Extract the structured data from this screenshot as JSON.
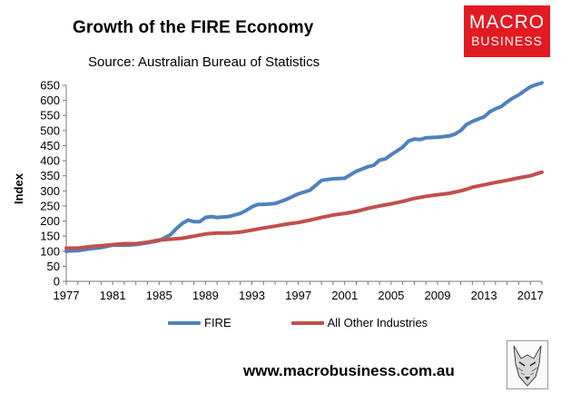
{
  "header": {
    "title": "Growth of the FIRE Economy",
    "subtitle": "Source: Australian Bureau of Statistics"
  },
  "logo": {
    "line1": "MACRO",
    "line2": "BUSINESS",
    "color": "#e21a22"
  },
  "footer": {
    "url": "www.macrobusiness.com.au"
  },
  "chart_data": {
    "type": "line",
    "title": "Growth of the FIRE Economy",
    "subtitle": "Source: Australian Bureau of Statistics",
    "xlabel": "",
    "ylabel": "Index",
    "xlim": [
      1977,
      2018
    ],
    "ylim": [
      0,
      650
    ],
    "yticks": [
      0,
      50,
      100,
      150,
      200,
      250,
      300,
      350,
      400,
      450,
      500,
      550,
      600,
      650
    ],
    "xticks": [
      1977,
      1981,
      1985,
      1989,
      1993,
      1997,
      2001,
      2005,
      2009,
      2013,
      2017
    ],
    "grid": false,
    "legend": "bottom",
    "series": [
      {
        "name": "FIRE",
        "color": "#4f81bd",
        "points": [
          [
            1977,
            100
          ],
          [
            1978,
            102
          ],
          [
            1979,
            108
          ],
          [
            1980,
            112
          ],
          [
            1981,
            120
          ],
          [
            1982,
            120
          ],
          [
            1983,
            122
          ],
          [
            1984,
            128
          ],
          [
            1985,
            135
          ],
          [
            1986,
            155
          ],
          [
            1986.5,
            175
          ],
          [
            1987,
            192
          ],
          [
            1987.5,
            203
          ],
          [
            1988,
            198
          ],
          [
            1988.5,
            198
          ],
          [
            1989,
            212
          ],
          [
            1989.5,
            215
          ],
          [
            1990,
            212
          ],
          [
            1991,
            215
          ],
          [
            1992,
            225
          ],
          [
            1992.5,
            235
          ],
          [
            1993,
            247
          ],
          [
            1993.5,
            255
          ],
          [
            1994,
            255
          ],
          [
            1995,
            258
          ],
          [
            1996,
            272
          ],
          [
            1997,
            290
          ],
          [
            1998,
            302
          ],
          [
            1998.5,
            318
          ],
          [
            1999,
            335
          ],
          [
            2000,
            340
          ],
          [
            2001,
            342
          ],
          [
            2002,
            365
          ],
          [
            2003,
            380
          ],
          [
            2003.5,
            385
          ],
          [
            2004,
            402
          ],
          [
            2004.5,
            406
          ],
          [
            2005,
            420
          ],
          [
            2005.5,
            432
          ],
          [
            2006,
            445
          ],
          [
            2006.5,
            465
          ],
          [
            2007,
            472
          ],
          [
            2007.5,
            470
          ],
          [
            2008,
            476
          ],
          [
            2009,
            478
          ],
          [
            2010,
            482
          ],
          [
            2010.5,
            488
          ],
          [
            2011,
            500
          ],
          [
            2011.5,
            520
          ],
          [
            2012,
            530
          ],
          [
            2012.5,
            538
          ],
          [
            2013,
            545
          ],
          [
            2013.5,
            562
          ],
          [
            2014,
            572
          ],
          [
            2014.5,
            580
          ],
          [
            2015,
            595
          ],
          [
            2015.5,
            608
          ],
          [
            2016,
            618
          ],
          [
            2016.5,
            632
          ],
          [
            2017,
            645
          ],
          [
            2017.5,
            652
          ],
          [
            2018,
            658
          ]
        ]
      },
      {
        "name": "All Other Industries",
        "color": "#c0504d",
        "points": [
          [
            1977,
            110
          ],
          [
            1978,
            110
          ],
          [
            1979,
            115
          ],
          [
            1980,
            118
          ],
          [
            1981,
            122
          ],
          [
            1982,
            125
          ],
          [
            1983,
            125
          ],
          [
            1984,
            130
          ],
          [
            1985,
            137
          ],
          [
            1986,
            140
          ],
          [
            1987,
            143
          ],
          [
            1988,
            150
          ],
          [
            1989,
            157
          ],
          [
            1990,
            160
          ],
          [
            1991,
            160
          ],
          [
            1992,
            163
          ],
          [
            1993,
            170
          ],
          [
            1994,
            177
          ],
          [
            1995,
            183
          ],
          [
            1996,
            190
          ],
          [
            1997,
            195
          ],
          [
            1998,
            203
          ],
          [
            1999,
            212
          ],
          [
            2000,
            220
          ],
          [
            2001,
            225
          ],
          [
            2002,
            232
          ],
          [
            2003,
            242
          ],
          [
            2004,
            250
          ],
          [
            2005,
            257
          ],
          [
            2006,
            265
          ],
          [
            2007,
            275
          ],
          [
            2008,
            282
          ],
          [
            2009,
            287
          ],
          [
            2010,
            292
          ],
          [
            2011,
            300
          ],
          [
            2011.5,
            305
          ],
          [
            2012,
            312
          ],
          [
            2013,
            320
          ],
          [
            2014,
            328
          ],
          [
            2015,
            335
          ],
          [
            2016,
            343
          ],
          [
            2017,
            350
          ],
          [
            2018,
            362
          ]
        ]
      }
    ]
  }
}
